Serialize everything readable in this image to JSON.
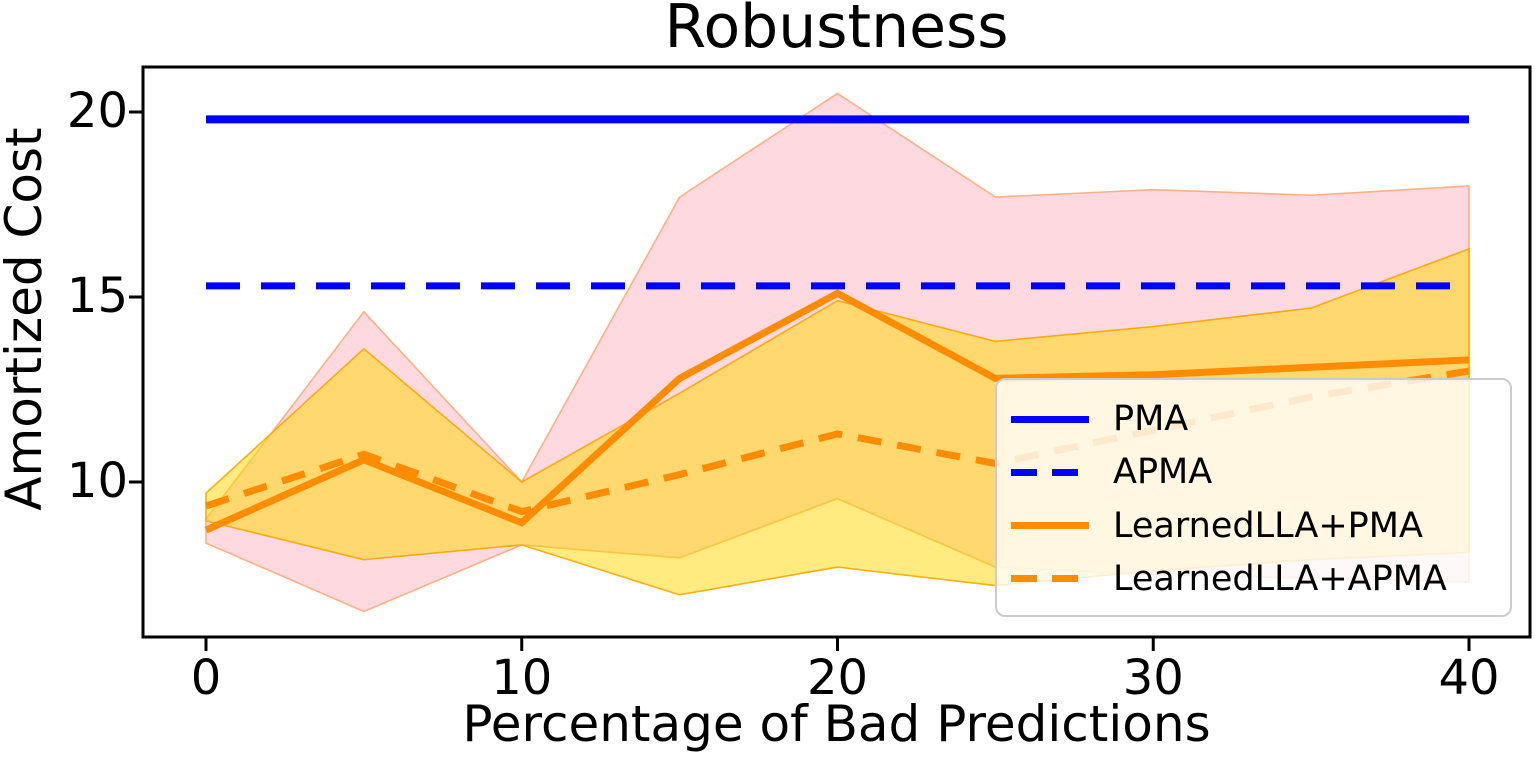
{
  "title": "Robustness",
  "x_axis": {
    "label": "Percentage of Bad Predictions",
    "ticks": [
      "0",
      "10",
      "20",
      "30",
      "40"
    ]
  },
  "y_axis": {
    "label": "Amortized Cost",
    "ticks": [
      "10",
      "15",
      "20"
    ]
  },
  "legend": {
    "position": "lower right",
    "entries": [
      {
        "label": "PMA",
        "style": "solid",
        "color": "#0000ff"
      },
      {
        "label": "APMA",
        "style": "dashed",
        "color": "#0000ff"
      },
      {
        "label": "LearnedLLA+PMA",
        "style": "solid",
        "color": "#ff8c00"
      },
      {
        "label": "LearnedLLA+APMA",
        "style": "dashed",
        "color": "#ff8c00"
      }
    ]
  },
  "colors": {
    "blue_line": "#0000ff",
    "orange_line": "#ff8c00",
    "pink_fill": "rgba(255,192,203,0.6)",
    "pink_edge": "rgba(255,170,120,0.9)",
    "gold_fill": "rgba(255,215,0,0.5)",
    "gold_edge": "rgba(255,165,0,0.9)",
    "axis": "#000000"
  },
  "chart_data": {
    "type": "line",
    "title": "Robustness",
    "xlabel": "Percentage of Bad Predictions",
    "ylabel": "Amortized Cost",
    "x_ticks": [
      0,
      10,
      20,
      30,
      40
    ],
    "y_ticks": [
      10,
      15,
      20
    ],
    "x_range": [
      -2,
      42
    ],
    "y_range": [
      5.8,
      21.2
    ],
    "grid": false,
    "legend_position": "lower right",
    "x": [
      0,
      5,
      10,
      15,
      20,
      25,
      30,
      35,
      40
    ],
    "series": [
      {
        "name": "PMA",
        "style": "solid",
        "color": "#0000ff",
        "value": 19.8
      },
      {
        "name": "APMA",
        "style": "dashed",
        "color": "#0000ff",
        "value": 15.3
      },
      {
        "name": "LearnedLLA+PMA",
        "style": "solid",
        "color": "#ff8c00",
        "values": [
          8.7,
          10.6,
          8.9,
          12.8,
          15.1,
          12.8,
          12.9,
          13.1,
          13.3
        ]
      },
      {
        "name": "LearnedLLA+APMA",
        "style": "dashed",
        "color": "#ff8c00",
        "values": [
          9.35,
          10.75,
          9.2,
          10.2,
          11.3,
          10.5,
          11.4,
          12.3,
          13.0
        ]
      }
    ],
    "bands": [
      {
        "name": "LearnedLLA+PMA-spread",
        "color": "pink",
        "upper": [
          9.0,
          14.6,
          10.0,
          17.7,
          20.5,
          17.7,
          17.9,
          17.75,
          18.0
        ],
        "lower": [
          8.35,
          6.5,
          8.3,
          7.95,
          9.55,
          7.7,
          7.5,
          7.4,
          7.3
        ]
      },
      {
        "name": "LearnedLLA+APMA-spread",
        "color": "gold",
        "upper": [
          9.7,
          13.6,
          10.0,
          12.4,
          14.9,
          13.8,
          14.2,
          14.7,
          16.3
        ],
        "lower": [
          8.95,
          7.9,
          8.3,
          6.95,
          7.7,
          7.2,
          7.6,
          7.9,
          8.1
        ]
      }
    ]
  }
}
